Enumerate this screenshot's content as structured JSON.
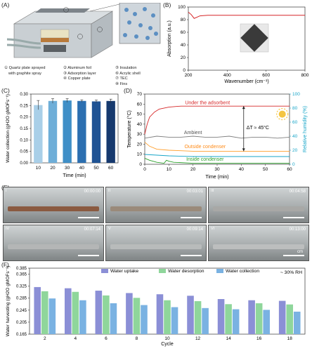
{
  "panels": {
    "a": "(A)",
    "b": "(B)",
    "c": "(C)",
    "d": "(D)",
    "e": "(E)",
    "f": "(F)"
  },
  "panelA": {
    "legend": [
      [
        "① Quartz plate sprayed",
        "② Aluminum foil",
        "⑤ Insulation"
      ],
      [
        "with graphite spray",
        "③ Adsorption layer",
        "⑥ Acrylic shell"
      ],
      [
        "",
        "④ Copper plate",
        "⑦ TEC"
      ],
      [
        "",
        "",
        "⑧ Fins"
      ]
    ]
  },
  "panelB": {
    "ylabel": "Absorption (a.u.)",
    "xlabel": "Wavenumber (cm⁻¹)",
    "xticks": [
      "200",
      "400",
      "600",
      "800"
    ],
    "yticks": [
      "0",
      "20",
      "40",
      "60",
      "80",
      "100"
    ],
    "line_color": "#d62728"
  },
  "panelC": {
    "ylabel": "Water collection (gH2O gMOFs⁻¹)",
    "xlabel": "Time (min)",
    "yticks": [
      "0.00",
      "0.05",
      "0.10",
      "0.15",
      "0.20",
      "0.25",
      "0.30"
    ]
  },
  "panelD": {
    "ylabel_left": "Temperature (°C)",
    "ylabel_right": "Relative humidity (%)",
    "xlabel": "Time (min)",
    "yticks_left": [
      "0",
      "10",
      "20",
      "30",
      "40",
      "50",
      "60",
      "70"
    ],
    "yticks_right": [
      "0",
      "20",
      "40",
      "60",
      "80",
      "100"
    ],
    "xticks": [
      "0",
      "10",
      "20",
      "30",
      "40",
      "50",
      "60"
    ],
    "labels": {
      "adsorbent": "Under the adsorbent",
      "ambient": "Ambient",
      "outside": "Outside condenser",
      "inside": "Inside condenser",
      "delta": "ΔT ≈ 45°C"
    }
  },
  "panelE": {
    "photos": [
      {
        "tag": "I",
        "time": "00:00:00"
      },
      {
        "tag": "II",
        "time": "00:03:01"
      },
      {
        "tag": "III",
        "time": "00:04:58"
      },
      {
        "tag": "IV",
        "time": "00:07:14"
      },
      {
        "tag": "V",
        "time": "00:09:14"
      },
      {
        "tag": "VI",
        "time": "00:13:00"
      }
    ],
    "scale_label": "cm"
  },
  "panelF": {
    "ylabel": "Water harvesting (gH2O gMOFs⁻¹)",
    "xlabel": "Cycle",
    "rh_note": "~ 30% RH",
    "yticks": [
      "0.165",
      "0.205",
      "0.245",
      "0.285",
      "0.325",
      "0.365",
      "0.385"
    ],
    "legend": [
      "Water uptake",
      "Water desorption",
      "Water collection"
    ]
  },
  "chart_data": [
    {
      "panel": "B",
      "type": "line",
      "x": [
        200,
        215,
        230,
        260,
        300,
        400,
        500,
        600,
        700,
        800
      ],
      "y": [
        92,
        88,
        82,
        86,
        87,
        87,
        87,
        87,
        87,
        87
      ],
      "xlim": [
        200,
        800
      ],
      "ylim": [
        0,
        100
      ],
      "xlabel": "Wavenumber (cm⁻¹)",
      "ylabel": "Absorption (a.u.)"
    },
    {
      "panel": "C",
      "type": "bar",
      "categories": [
        "10",
        "20",
        "30",
        "40",
        "50",
        "60"
      ],
      "values": [
        0.252,
        0.27,
        0.272,
        0.27,
        0.268,
        0.27
      ],
      "errors": [
        0.02,
        0.01,
        0.008,
        0.005,
        0.006,
        0.008
      ],
      "colors": [
        "#a9cfe8",
        "#6eaed8",
        "#3f8fc7",
        "#2c6fb0",
        "#1f5394",
        "#16396e"
      ],
      "ylim": [
        0,
        0.3
      ],
      "xlabel": "Time (min)",
      "ylabel": "Water collection (gH2O gMOFs⁻¹)"
    },
    {
      "panel": "D",
      "type": "line",
      "xlim": [
        0,
        60
      ],
      "ylim": [
        0,
        70
      ],
      "ylim_right": [
        0,
        100
      ],
      "series": [
        {
          "name": "Under the adsorbent",
          "color": "#d62728",
          "x": [
            0,
            1,
            2,
            4,
            6,
            10,
            15,
            20,
            30,
            40,
            50,
            60
          ],
          "y": [
            30,
            40,
            47,
            52,
            55,
            57,
            58,
            58,
            58,
            58,
            58,
            58
          ]
        },
        {
          "name": "Ambient",
          "color": "#7f7f7f",
          "x": [
            0,
            5,
            10,
            15,
            20,
            25,
            30,
            35,
            40,
            45,
            50,
            55,
            60
          ],
          "y": [
            26,
            28,
            27,
            27,
            28,
            27,
            27,
            28,
            26,
            27,
            27,
            26,
            27
          ]
        },
        {
          "name": "Outside condenser",
          "color": "#ff9f2d",
          "x": [
            0,
            2,
            5,
            10,
            20,
            30,
            40,
            50,
            60
          ],
          "y": [
            22,
            18,
            15,
            14,
            13,
            13,
            13,
            13,
            13
          ]
        },
        {
          "name": "Inside condenser",
          "color": "#2ca02c",
          "x": [
            0,
            2,
            5,
            8,
            9,
            10,
            12,
            20,
            30,
            40,
            50,
            60
          ],
          "y": [
            6,
            4,
            2,
            1,
            4,
            3,
            2,
            1,
            1,
            1,
            1,
            1
          ]
        },
        {
          "name": "Relative humidity",
          "color": "#17a5c8",
          "axis": "right",
          "x": [
            0,
            5,
            10,
            20,
            30,
            40,
            50,
            60
          ],
          "y": [
            14,
            13,
            12,
            11,
            11,
            11,
            11,
            11
          ]
        }
      ]
    },
    {
      "panel": "F",
      "type": "bar",
      "categories": [
        "2",
        "4",
        "6",
        "8",
        "10",
        "12",
        "14",
        "16",
        "18"
      ],
      "ylim": [
        0.165,
        0.385
      ],
      "series": [
        {
          "name": "Water uptake",
          "color": "#8b8fd6",
          "values": [
            0.322,
            0.318,
            0.31,
            0.302,
            0.298,
            0.293,
            0.282,
            0.278,
            0.276
          ]
        },
        {
          "name": "Water desorption",
          "color": "#8fd69b",
          "values": [
            0.308,
            0.306,
            0.294,
            0.286,
            0.278,
            0.275,
            0.265,
            0.268,
            0.264
          ]
        },
        {
          "name": "Water collection",
          "color": "#7ab2e2",
          "values": [
            0.284,
            0.278,
            0.268,
            0.262,
            0.255,
            0.252,
            0.248,
            0.246,
            0.24
          ]
        }
      ],
      "xlabel": "Cycle",
      "ylabel": "Water harvesting (gH2O gMOFs⁻¹)"
    }
  ]
}
